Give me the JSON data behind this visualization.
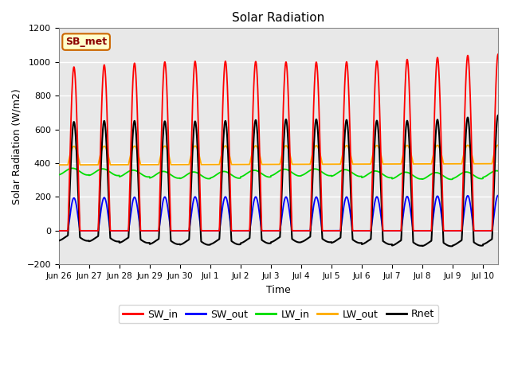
{
  "title": "Solar Radiation",
  "ylabel": "Solar Radiation (W/m2)",
  "xlabel": "Time",
  "ylim": [
    -200,
    1200
  ],
  "yticks": [
    -200,
    0,
    200,
    400,
    600,
    800,
    1000,
    1200
  ],
  "background_color": "#e8e8e8",
  "figure_facecolor": "#ffffff",
  "label_box_text": "SB_met",
  "label_box_facecolor": "#ffffcc",
  "label_box_edgecolor": "#cc6600",
  "series_colors": {
    "SW_in": "#ff0000",
    "SW_out": "#0000ff",
    "LW_in": "#00dd00",
    "LW_out": "#ffaa00",
    "Rnet": "#000000"
  },
  "tick_labels": [
    "Jun 26",
    "Jun 27",
    "Jun 28",
    "Jun 29",
    "Jun 30",
    "Jul 1",
    "Jul 2",
    "Jul 3",
    "Jul 4",
    "Jul 5",
    "Jul 6",
    "Jul 7",
    "Jul 8",
    "Jul 9",
    "Jul 10"
  ],
  "n_days": 14.5,
  "points_per_day": 288
}
